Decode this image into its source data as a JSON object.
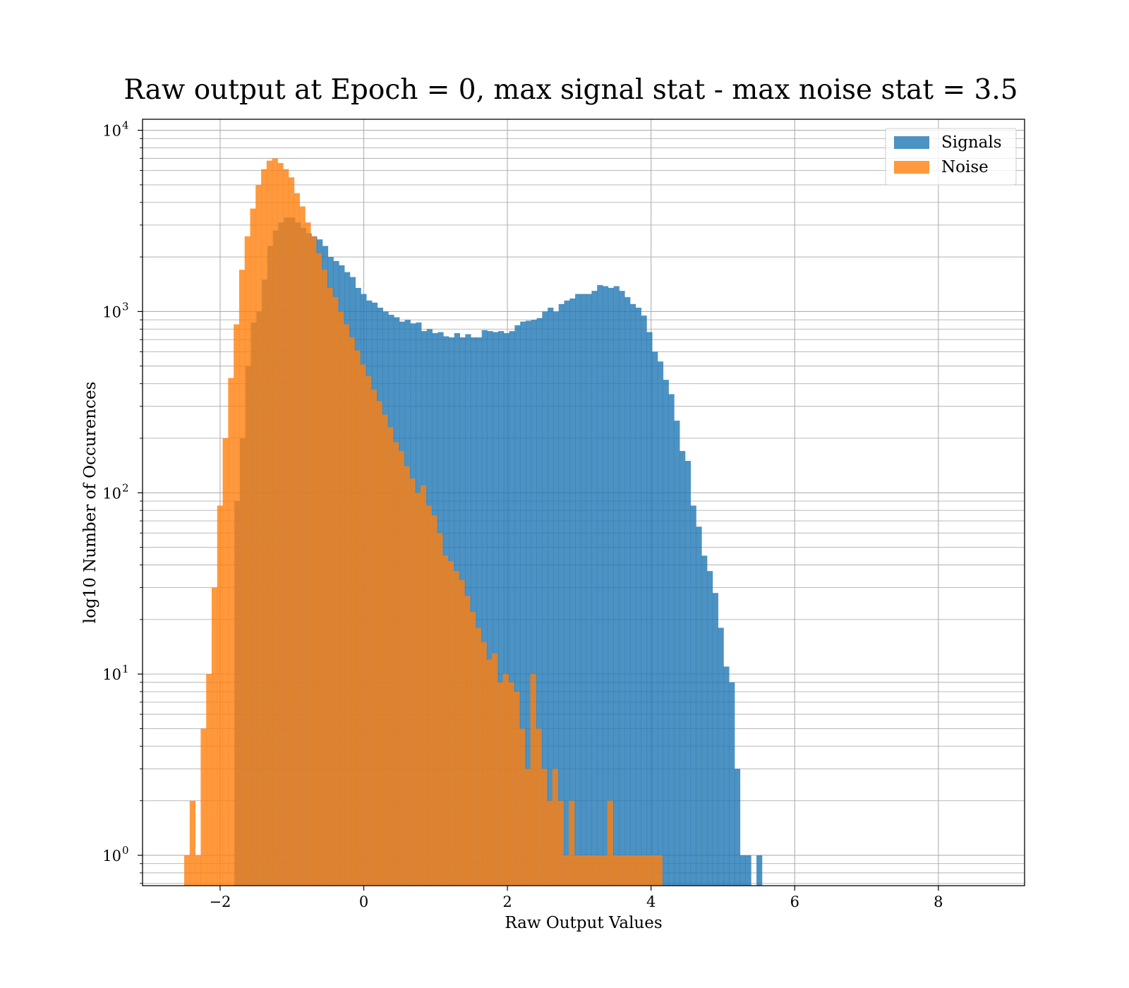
{
  "chart_data": {
    "type": "bar",
    "title": "Raw output at Epoch = 0, max signal stat - max noise stat = 3.5",
    "xlabel": "Raw Output Values",
    "ylabel": "log10 Number of Occurences",
    "xlim": [
      -3.08,
      9.2
    ],
    "ylim": [
      0.68,
      11500
    ],
    "yscale": "log",
    "grid": true,
    "legend_position": "top-right",
    "x_ticks": [
      {
        "value": -2,
        "label": "−2"
      },
      {
        "value": 0,
        "label": "0"
      },
      {
        "value": 2,
        "label": "2"
      },
      {
        "value": 4,
        "label": "4"
      },
      {
        "value": 6,
        "label": "6"
      },
      {
        "value": 8,
        "label": "8"
      }
    ],
    "y_ticks": [
      {
        "value": 1,
        "base": "10",
        "exp": "0"
      },
      {
        "value": 10,
        "base": "10",
        "exp": "1"
      },
      {
        "value": 100,
        "base": "10",
        "exp": "2"
      },
      {
        "value": 1000,
        "base": "10",
        "exp": "3"
      },
      {
        "value": 10000,
        "base": "10",
        "exp": "4"
      }
    ],
    "series": [
      {
        "name": "Signals",
        "color": "#1f77b4",
        "opacity": 0.8,
        "bin_start": -1.8,
        "bin_width": 0.0765,
        "values": [
          90,
          200,
          500,
          870,
          1000,
          1500,
          2300,
          2800,
          3100,
          3300,
          3300,
          3100,
          2900,
          2700,
          2600,
          2500,
          2300,
          2000,
          1900,
          1800,
          1650,
          1550,
          1350,
          1250,
          1150,
          1120,
          1050,
          1000,
          960,
          930,
          880,
          900,
          860,
          870,
          780,
          800,
          760,
          770,
          730,
          720,
          760,
          720,
          750,
          720,
          720,
          790,
          780,
          770,
          780,
          760,
          780,
          840,
          880,
          890,
          900,
          920,
          1000,
          1050,
          1000,
          1100,
          1150,
          1180,
          1250,
          1250,
          1250,
          1300,
          1400,
          1380,
          1350,
          1380,
          1300,
          1200,
          1100,
          1050,
          950,
          770,
          600,
          530,
          420,
          350,
          250,
          170,
          150,
          85,
          65,
          45,
          37,
          28,
          18,
          11,
          9,
          3,
          1,
          1,
          0,
          1
        ]
      },
      {
        "name": "Noise",
        "color": "#ff7f0e",
        "opacity": 0.8,
        "bin_start": -2.5,
        "bin_width": 0.0765,
        "values": [
          1,
          2,
          1,
          5,
          10,
          30,
          85,
          200,
          430,
          850,
          1700,
          2600,
          3700,
          5000,
          6100,
          6800,
          7000,
          6600,
          6100,
          5500,
          4500,
          3800,
          3100,
          2600,
          2100,
          1700,
          1350,
          1200,
          1000,
          850,
          720,
          610,
          510,
          440,
          370,
          320,
          270,
          230,
          190,
          170,
          140,
          120,
          100,
          110,
          85,
          75,
          60,
          45,
          42,
          37,
          33,
          27,
          22,
          18,
          15,
          12,
          13,
          9,
          10,
          9,
          8,
          5,
          3,
          10,
          5,
          3,
          2,
          3,
          2,
          1,
          2,
          1,
          1,
          1,
          1,
          1,
          1,
          2,
          1,
          1,
          1,
          1,
          1,
          1,
          1,
          1,
          1
        ]
      }
    ]
  }
}
